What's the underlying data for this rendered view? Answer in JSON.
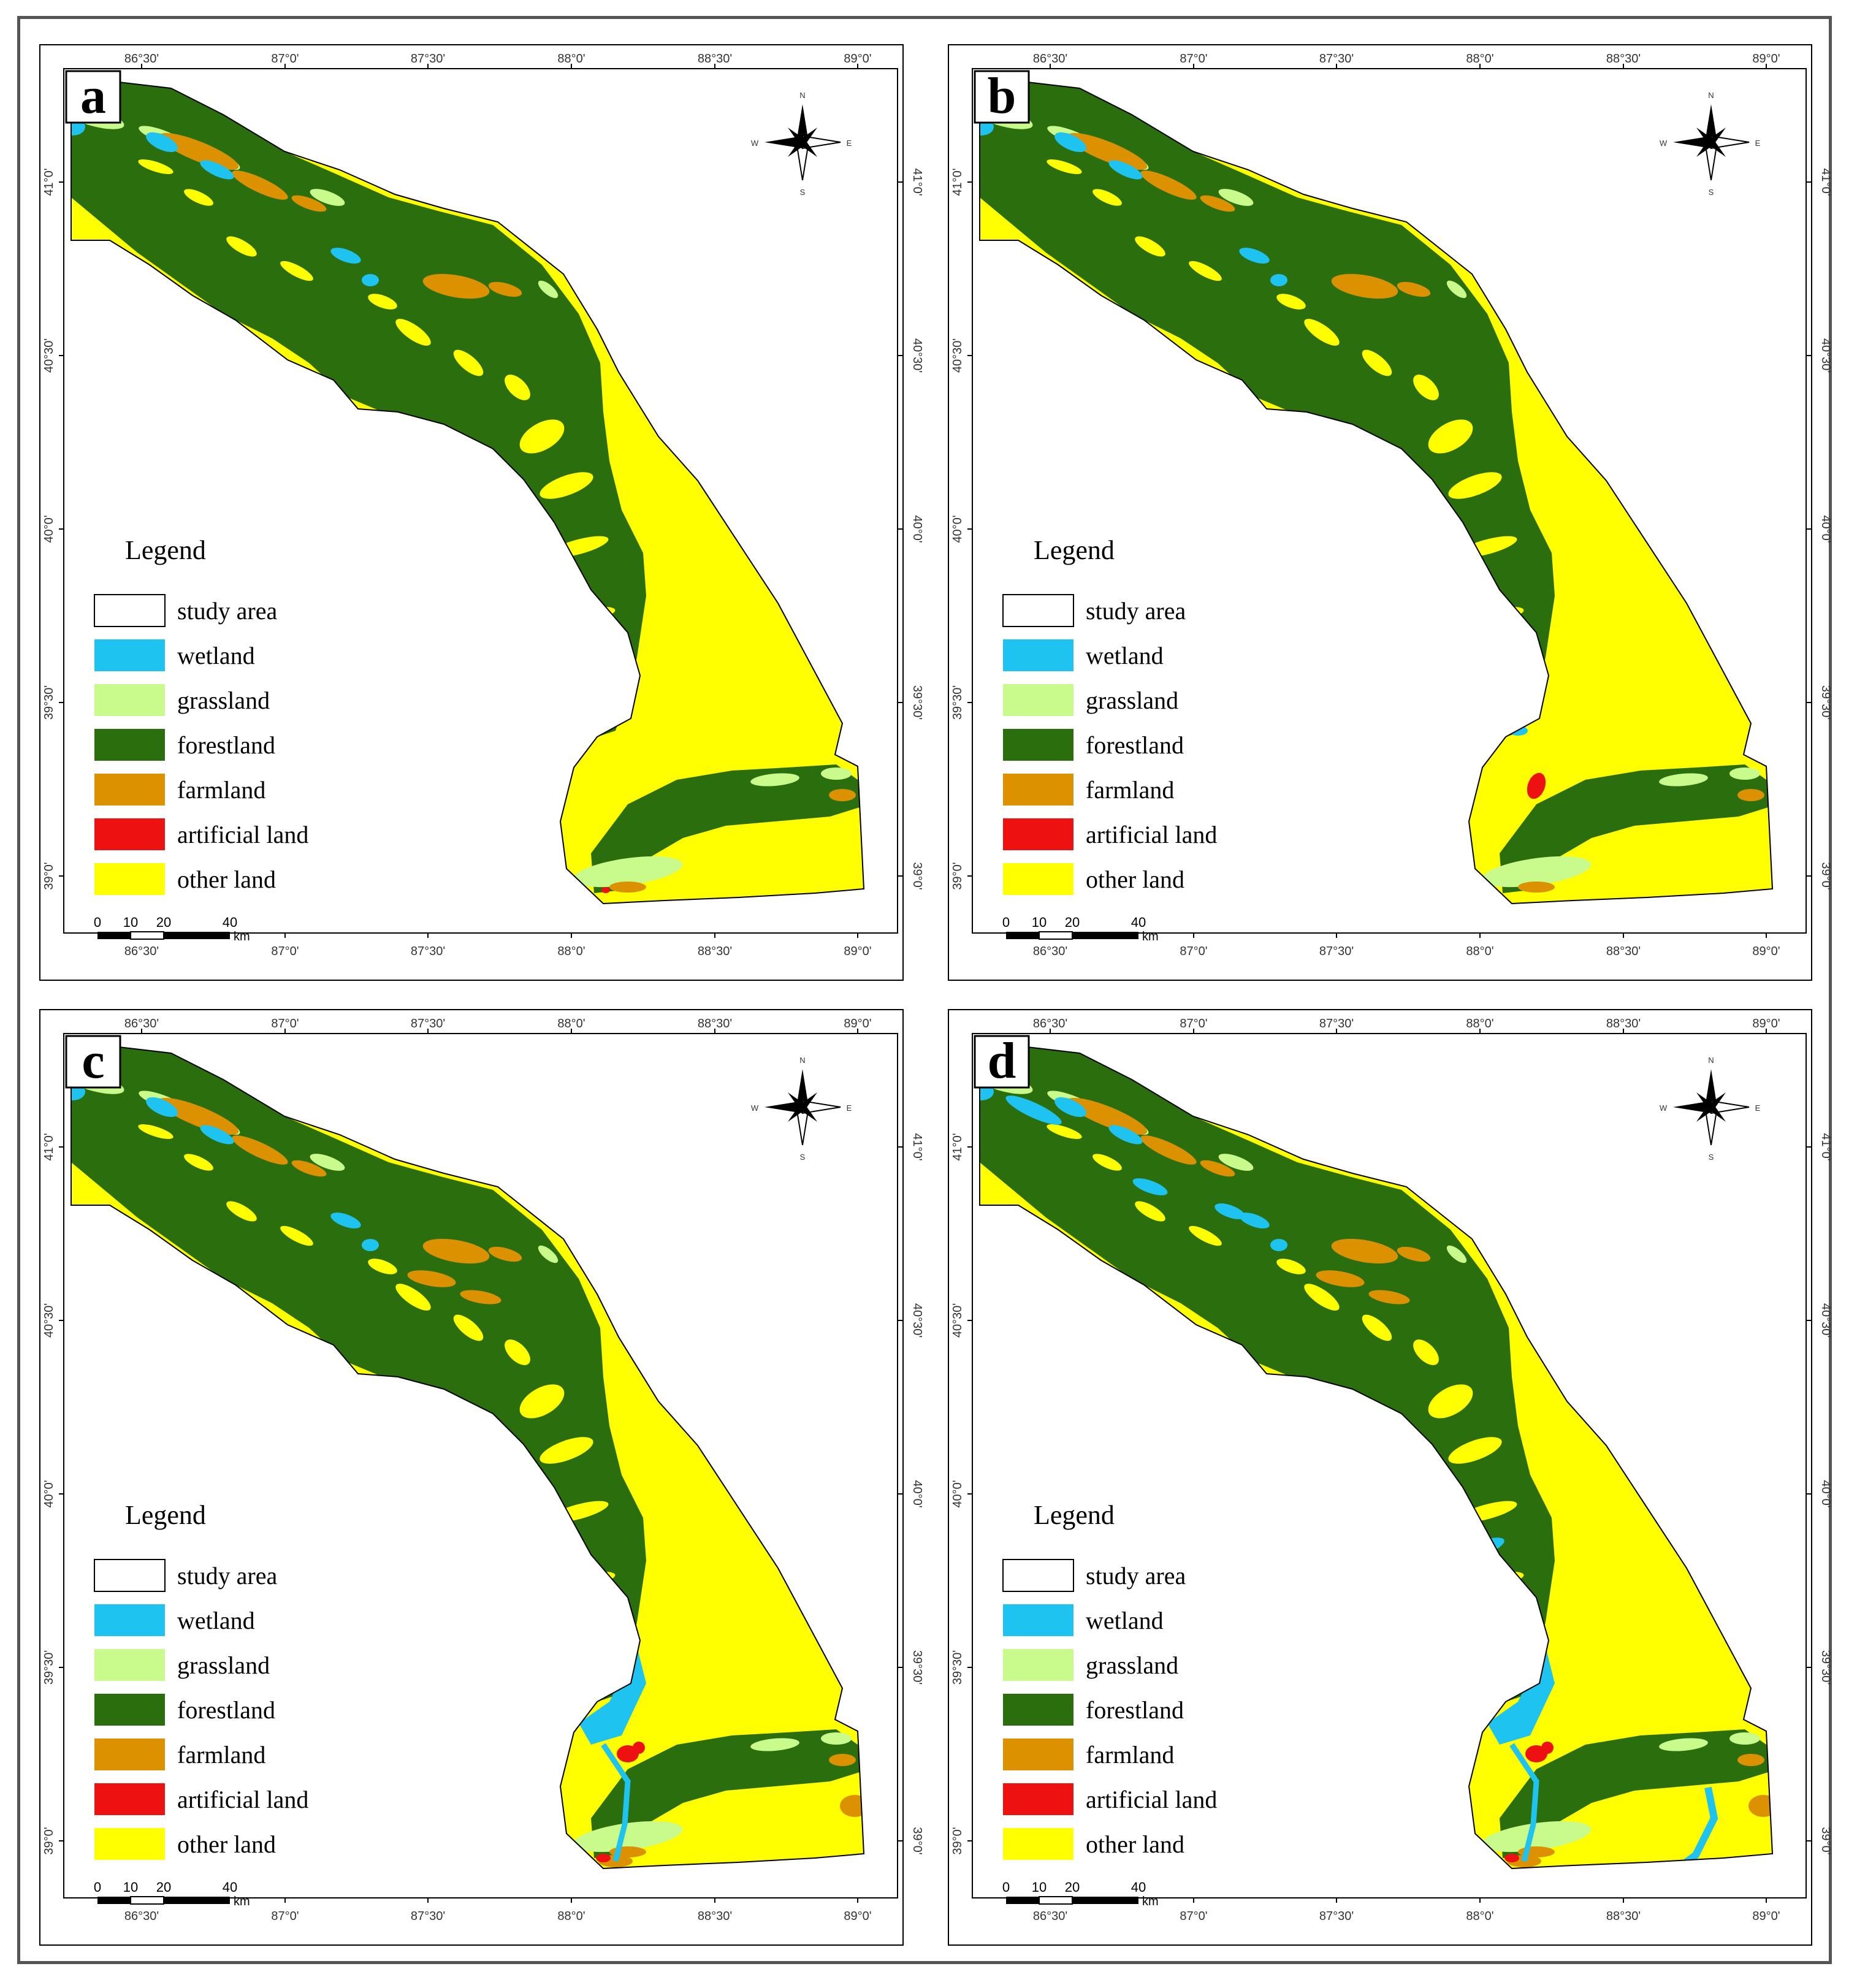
{
  "figure": {
    "panels": [
      {
        "id": "a",
        "label": "a",
        "lon_ticks": [
          "86°30'",
          "87°0'",
          "87°30'",
          "88°0'",
          "88°30'",
          "89°0'"
        ],
        "lat_ticks": [
          "41°0'",
          "40°30'",
          "40°0'",
          "39°30'",
          "39°0'"
        ],
        "compass": {
          "n": "N",
          "s": "S",
          "e": "E",
          "w": "W"
        },
        "legend": {
          "title": "Legend",
          "items": [
            "study area",
            "wetland",
            "grassland",
            "forestland",
            "farmland",
            "artificial land",
            "other land"
          ]
        },
        "scalebar": {
          "ticks": [
            "0",
            "10",
            "20",
            "40"
          ],
          "unit": "km"
        },
        "land_cover": {
          "wetland_extent": "low",
          "artificial_land": "minimal"
        }
      },
      {
        "id": "b",
        "label": "b",
        "lon_ticks": [
          "86°30'",
          "87°0'",
          "87°30'",
          "88°0'",
          "88°30'",
          "89°0'"
        ],
        "lat_ticks": [
          "41°0'",
          "40°30'",
          "40°0'",
          "39°30'",
          "39°0'"
        ],
        "compass": {
          "n": "N",
          "s": "S",
          "e": "E",
          "w": "W"
        },
        "legend": {
          "title": "Legend",
          "items": [
            "study area",
            "wetland",
            "grassland",
            "forestland",
            "farmland",
            "artificial land",
            "other land"
          ]
        },
        "scalebar": {
          "ticks": [
            "0",
            "10",
            "20",
            "40"
          ],
          "unit": "km"
        },
        "land_cover": {
          "wetland_extent": "low",
          "artificial_land": "small"
        }
      },
      {
        "id": "c",
        "label": "c",
        "lon_ticks": [
          "86°30'",
          "87°0'",
          "87°30'",
          "88°0'",
          "88°30'",
          "89°0'"
        ],
        "lat_ticks": [
          "41°0'",
          "40°30'",
          "40°0'",
          "39°30'",
          "39°0'"
        ],
        "compass": {
          "n": "N",
          "s": "S",
          "e": "E",
          "w": "W"
        },
        "legend": {
          "title": "Legend",
          "items": [
            "study area",
            "wetland",
            "grassland",
            "forestland",
            "farmland",
            "artificial land",
            "other land"
          ]
        },
        "scalebar": {
          "ticks": [
            "0",
            "10",
            "20",
            "40"
          ],
          "unit": "km"
        },
        "land_cover": {
          "wetland_extent": "medium",
          "artificial_land": "medium"
        }
      },
      {
        "id": "d",
        "label": "d",
        "lon_ticks": [
          "86°30'",
          "87°0'",
          "87°30'",
          "88°0'",
          "88°30'",
          "89°0'"
        ],
        "lat_ticks": [
          "41°0'",
          "40°30'",
          "40°0'",
          "39°30'",
          "39°0'"
        ],
        "compass": {
          "n": "N",
          "s": "S",
          "e": "E",
          "w": "W"
        },
        "legend": {
          "title": "Legend",
          "items": [
            "study area",
            "wetland",
            "grassland",
            "forestland",
            "farmland",
            "artificial land",
            "other land"
          ]
        },
        "scalebar": {
          "ticks": [
            "0",
            "10",
            "20",
            "40"
          ],
          "unit": "km"
        },
        "land_cover": {
          "wetland_extent": "high",
          "artificial_land": "medium"
        }
      }
    ],
    "colors": {
      "study area": "#ffffff",
      "wetland": "#1ec3f0",
      "grassland": "#c8fa8c",
      "forestland": "#2b6e0e",
      "farmland": "#dc9200",
      "artificial land": "#ee1111",
      "other land": "#ffff00",
      "frame": "#555555",
      "ink": "#000000"
    }
  }
}
